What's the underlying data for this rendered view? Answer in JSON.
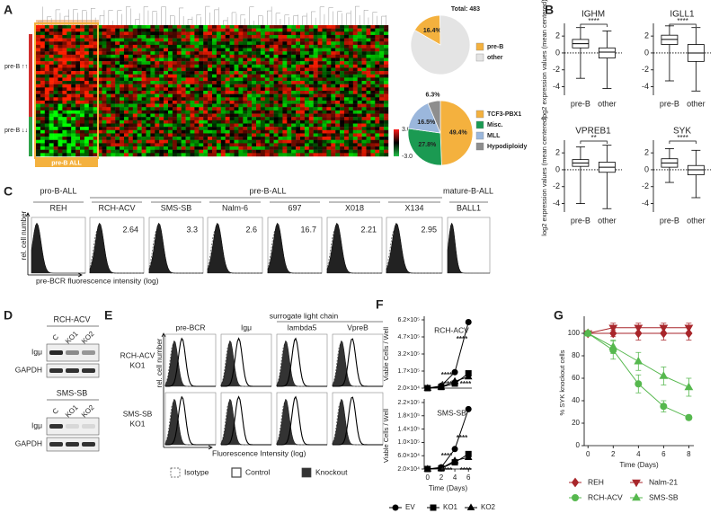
{
  "panel_labels": [
    "A",
    "B",
    "C",
    "D",
    "E",
    "F",
    "G"
  ],
  "heatmap": {
    "row_groups": [
      "pre-B ↑↑",
      "pre-B ↓↓"
    ],
    "highlight_label": "pre-B  ALL",
    "colorbar_ticks": [
      {
        "value": 3,
        "label": "3.0"
      },
      {
        "value": -3,
        "label": "-3.0"
      }
    ]
  },
  "chart_data": [
    {
      "type": "pie",
      "title": "Total: 483",
      "categories": [
        "pre-B",
        "other"
      ],
      "values": [
        16.4,
        83.6
      ],
      "value_labels": [
        "16.4%",
        null
      ],
      "colors": [
        "#f4b13e",
        "#e4e4e4"
      ]
    },
    {
      "type": "pie",
      "categories": [
        "TCF3-PBX1",
        "Misc.",
        "MLL",
        "Hypodiploidy"
      ],
      "values": [
        49.4,
        27.8,
        16.5,
        6.3
      ],
      "value_labels": [
        "49.4%",
        "27.8%",
        "16.5%",
        "6.3%"
      ],
      "colors": [
        "#f4b13e",
        "#1b9a52",
        "#9bb7dc",
        "#8e8e8e"
      ]
    },
    {
      "type": "box",
      "title": "IGHM",
      "ylabel": "log2 expression values (mean centered)",
      "categories": [
        "pre-B",
        "other"
      ],
      "boxes": [
        {
          "min": -3,
          "q1": 0.6,
          "median": 1.1,
          "q3": 1.6,
          "max": 3
        },
        {
          "min": -4.2,
          "q1": -0.6,
          "median": 0.1,
          "q3": 0.6,
          "max": 2.6
        }
      ],
      "significance": "****",
      "ylim": [
        -5,
        3.5
      ],
      "yticks": [
        -4,
        -2,
        0,
        2
      ],
      "zero_line": true
    },
    {
      "type": "box",
      "title": "IGLL1",
      "categories": [
        "pre-B",
        "other"
      ],
      "boxes": [
        {
          "min": -3.3,
          "q1": 1,
          "median": 1.6,
          "q3": 2.1,
          "max": 3.2
        },
        {
          "min": -4.5,
          "q1": -1,
          "median": 0,
          "q3": 1,
          "max": 3
        }
      ],
      "significance": "****",
      "ylim": [
        -5,
        3.5
      ],
      "yticks": [
        -4,
        -2,
        0,
        2
      ],
      "zero_line": true
    },
    {
      "type": "box",
      "title": "VPREB1",
      "ylabel": "log2 expression values (mean centered)",
      "categories": [
        "pre-B",
        "other"
      ],
      "boxes": [
        {
          "min": -4,
          "q1": 0.4,
          "median": 0.8,
          "q3": 1.2,
          "max": 2.7
        },
        {
          "min": -4.6,
          "q1": -0.3,
          "median": 0.3,
          "q3": 0.9,
          "max": 2.9
        }
      ],
      "significance": "**",
      "ylim": [
        -5,
        3.5
      ],
      "yticks": [
        -4,
        -2,
        0,
        2
      ],
      "zero_line": true
    },
    {
      "type": "box",
      "title": "SYK",
      "categories": [
        "pre-B",
        "other"
      ],
      "boxes": [
        {
          "min": -1.5,
          "q1": 0.3,
          "median": 0.8,
          "q3": 1.3,
          "max": 2.5
        },
        {
          "min": -3.3,
          "q1": -0.6,
          "median": 0,
          "q3": 0.5,
          "max": 2.3
        }
      ],
      "significance": "****",
      "ylim": [
        -5,
        3.5
      ],
      "yticks": [
        -4,
        -2,
        0,
        2
      ],
      "zero_line": true
    },
    {
      "type": "line",
      "title": "RCH-ACV",
      "ylabel": "Viable Cells / Well",
      "x": [
        0,
        2,
        4,
        6
      ],
      "xlim": [
        -0.5,
        6.5
      ],
      "ylim": [
        20000,
        620000
      ],
      "yticks": [
        {
          "value": 20000,
          "label": "2.0×10⁴"
        },
        {
          "value": 170000,
          "label": "1.7×10⁵"
        },
        {
          "value": 320000,
          "label": "3.2×10⁵"
        },
        {
          "value": 470000,
          "label": "4.7×10⁵"
        },
        {
          "value": 620000,
          "label": "6.2×10⁵"
        }
      ],
      "series": [
        {
          "name": "EV",
          "color": "#000000",
          "marker": "circle",
          "values": [
            20000,
            40000,
            160000,
            600000
          ]
        },
        {
          "name": "KO1",
          "color": "#000000",
          "marker": "square",
          "values": [
            20000,
            30000,
            60000,
            150000
          ]
        },
        {
          "name": "KO2",
          "color": "#000000",
          "marker": "triangle",
          "values": [
            20000,
            30000,
            80000,
            120000
          ]
        }
      ],
      "annotations": [
        "****",
        "****",
        "****",
        "****"
      ]
    },
    {
      "type": "line",
      "title": "SMS-SB",
      "ylabel": "Viable Cells / Well",
      "xlabel": "Time (Days)",
      "x": [
        0,
        2,
        4,
        6
      ],
      "xlim": [
        -0.5,
        6.5
      ],
      "xticks": [
        0,
        2,
        4,
        6
      ],
      "ylim": [
        20000,
        220000
      ],
      "yticks": [
        {
          "value": 20000,
          "label": "2.0×10⁴"
        },
        {
          "value": 60000,
          "label": "6.0×10⁴"
        },
        {
          "value": 100000,
          "label": "1.0×10⁵"
        },
        {
          "value": 140000,
          "label": "1.4×10⁵"
        },
        {
          "value": 180000,
          "label": "1.8×10⁵"
        },
        {
          "value": 220000,
          "label": "2.2×10⁵"
        }
      ],
      "series": [
        {
          "color": "#000000",
          "marker": "circle",
          "values": [
            20000,
            25000,
            80000,
            200000
          ]
        },
        {
          "color": "#000000",
          "marker": "square",
          "values": [
            20000,
            22000,
            40000,
            65000
          ]
        },
        {
          "color": "#000000",
          "marker": "triangle",
          "values": [
            20000,
            22000,
            45000,
            55000
          ]
        }
      ],
      "annotations": [
        "****",
        "****",
        "****",
        "****"
      ]
    },
    {
      "type": "line",
      "ylabel": "% SYK knockout cells",
      "xlabel": "Time (Days)",
      "x": [
        0,
        2,
        4,
        6,
        8
      ],
      "xlim": [
        -0.3,
        8.4
      ],
      "xticks": [
        0,
        2,
        4,
        6,
        8
      ],
      "ylim": [
        0,
        112
      ],
      "yticks": [
        0,
        20,
        40,
        60,
        80,
        100
      ],
      "series": [
        {
          "name": "REH",
          "color": "#a8262b",
          "marker": "diamond",
          "values": [
            100,
            100,
            100,
            100,
            100
          ],
          "errors": [
            0,
            3,
            6,
            6,
            6
          ]
        },
        {
          "name": "Nalm-21",
          "color": "#a8262b",
          "marker": "triangle-down",
          "values": [
            100,
            105,
            105,
            105,
            105
          ],
          "errors": [
            0,
            4,
            4,
            4,
            4
          ]
        },
        {
          "name": "RCH-ACV",
          "color": "#56b84e",
          "marker": "circle",
          "values": [
            100,
            85,
            55,
            35,
            25
          ],
          "errors": [
            0,
            8,
            8,
            5,
            2
          ]
        },
        {
          "name": "SMS-SB",
          "color": "#56b84e",
          "marker": "triangle",
          "values": [
            100,
            88,
            75,
            62,
            52
          ],
          "errors": [
            0,
            6,
            8,
            8,
            8
          ]
        }
      ]
    }
  ],
  "flow": {
    "groups": [
      "pro-B-ALL",
      "pre-B-ALL",
      "mature-B-ALL"
    ],
    "cell_lines": [
      {
        "name": "REH"
      },
      {
        "name": "RCH-ACV",
        "mfi": 2.64
      },
      {
        "name": "SMS-SB",
        "mfi": 3.3
      },
      {
        "name": "Nalm-6",
        "mfi": 2.6
      },
      {
        "name": "697",
        "mfi": 16.7
      },
      {
        "name": "X018",
        "mfi": 2.21
      },
      {
        "name": "X134",
        "mfi": 2.95
      },
      {
        "name": "BALL1"
      }
    ],
    "ylabel": "rel. cell number",
    "xlabel": "pre-BCR fluorescence intensity (log)"
  },
  "blot": {
    "groups": [
      {
        "cell_line": "RCH-ACV",
        "lanes": [
          "C",
          "KO1",
          "KO2"
        ],
        "proteins": [
          "Igμ",
          "GAPDH"
        ]
      },
      {
        "cell_line": "SMS-SB",
        "lanes": [
          "C",
          "KO1",
          "KO2"
        ],
        "proteins": [
          "Igμ",
          "GAPDH"
        ]
      }
    ]
  },
  "knockout_flow": {
    "group_label": "surrogate light chain",
    "columns": [
      "pre-BCR",
      "Igμ",
      "lambda5",
      "VpreB"
    ],
    "rows": [
      [
        "RCH-ACV",
        "KO1"
      ],
      [
        "SMS-SB",
        "KO1"
      ]
    ],
    "ylabel": "rel. cell number",
    "xlabel": "Fluorescence Intensity (log)",
    "legend": [
      "Isotype",
      "Control",
      "Knockout"
    ]
  }
}
